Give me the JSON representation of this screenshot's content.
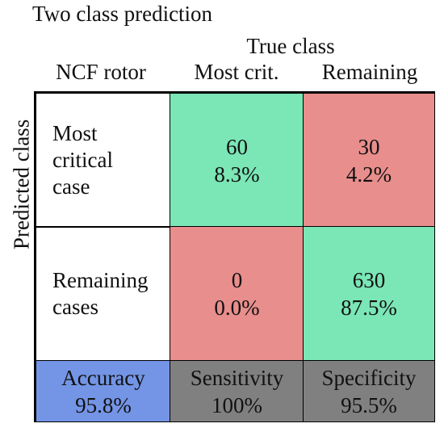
{
  "title": "Two class prediction",
  "true_class_label": "True class",
  "predicted_class_label": "Predicted class",
  "corner_label": "NCF rotor",
  "columns": [
    "Most crit.",
    "Remaining"
  ],
  "rows": [
    {
      "label_lines": [
        "Most",
        "critical",
        "case"
      ]
    },
    {
      "label_lines": [
        "Remaining",
        "cases"
      ]
    }
  ],
  "cells": [
    [
      {
        "count": "60",
        "percent": "8.3%",
        "color": "#7be6b6"
      },
      {
        "count": "30",
        "percent": "4.2%",
        "color": "#e88e8c"
      }
    ],
    [
      {
        "count": "0",
        "percent": "0.0%",
        "color": "#e88e8c"
      },
      {
        "count": "630",
        "percent": "87.5%",
        "color": "#7be6b6"
      }
    ]
  ],
  "summary": [
    {
      "label": "Accuracy",
      "value": "95.8%",
      "color": "#7495e6"
    },
    {
      "label": "Sensitivity",
      "value": "100%",
      "color": "#808080"
    },
    {
      "label": "Specificity",
      "value": "95.5%",
      "color": "#808080"
    }
  ],
  "chart_data": {
    "type": "table",
    "title": "Two class prediction",
    "xlabel": "True class",
    "ylabel": "Predicted class",
    "categories": [
      "Most crit.",
      "Remaining"
    ],
    "matrix": [
      [
        60,
        30
      ],
      [
        0,
        630
      ]
    ],
    "percentages": [
      [
        8.3,
        4.2
      ],
      [
        0.0,
        87.5
      ]
    ],
    "metrics": {
      "Accuracy": 95.8,
      "Sensitivity": 100,
      "Specificity": 95.5
    }
  }
}
